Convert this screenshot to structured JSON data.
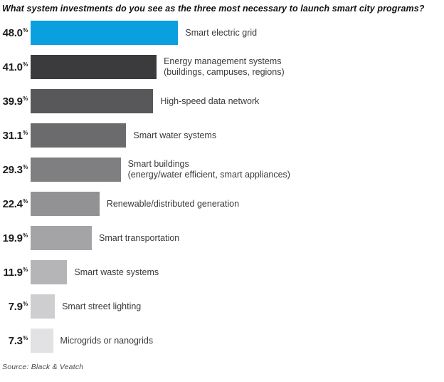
{
  "title": "What system investments do you see as the three most necessary to launch smart city programs?",
  "source": "Source: Black & Veatch",
  "chart_data": {
    "type": "bar",
    "orientation": "horizontal",
    "title": "What system investments do you see as the three most necessary to launch smart city programs?",
    "source": "Source: Black & Veatch",
    "xlim": [
      0,
      50
    ],
    "grid": false,
    "legend": false,
    "unit": "%",
    "categories": [
      [
        "Smart electric grid"
      ],
      [
        "Energy management systems",
        "(buildings, campuses, regions)"
      ],
      [
        "High-speed data network"
      ],
      [
        "Smart water systems"
      ],
      [
        "Smart buildings",
        "(energy/water efficient, smart appliances)"
      ],
      [
        "Renewable/distributed generation"
      ],
      [
        "Smart transportation"
      ],
      [
        "Smart waste systems"
      ],
      [
        "Smart street lighting"
      ],
      [
        "Microgrids or nanogrids"
      ]
    ],
    "values": [
      48.0,
      41.0,
      39.9,
      31.1,
      29.3,
      22.4,
      19.9,
      11.9,
      7.9,
      7.3
    ],
    "value_labels": [
      "48.0",
      "41.0",
      "39.9",
      "31.1",
      "29.3",
      "22.4",
      "19.9",
      "11.9",
      "7.9",
      "7.3"
    ],
    "bar_colors": [
      "#0aa0e0",
      "#3b3b3d",
      "#58585a",
      "#6b6b6d",
      "#7f7f81",
      "#929294",
      "#a4a4a6",
      "#b5b5b7",
      "#ceced0",
      "#e2e2e4"
    ],
    "highlight_color": "#0aa0e0"
  }
}
